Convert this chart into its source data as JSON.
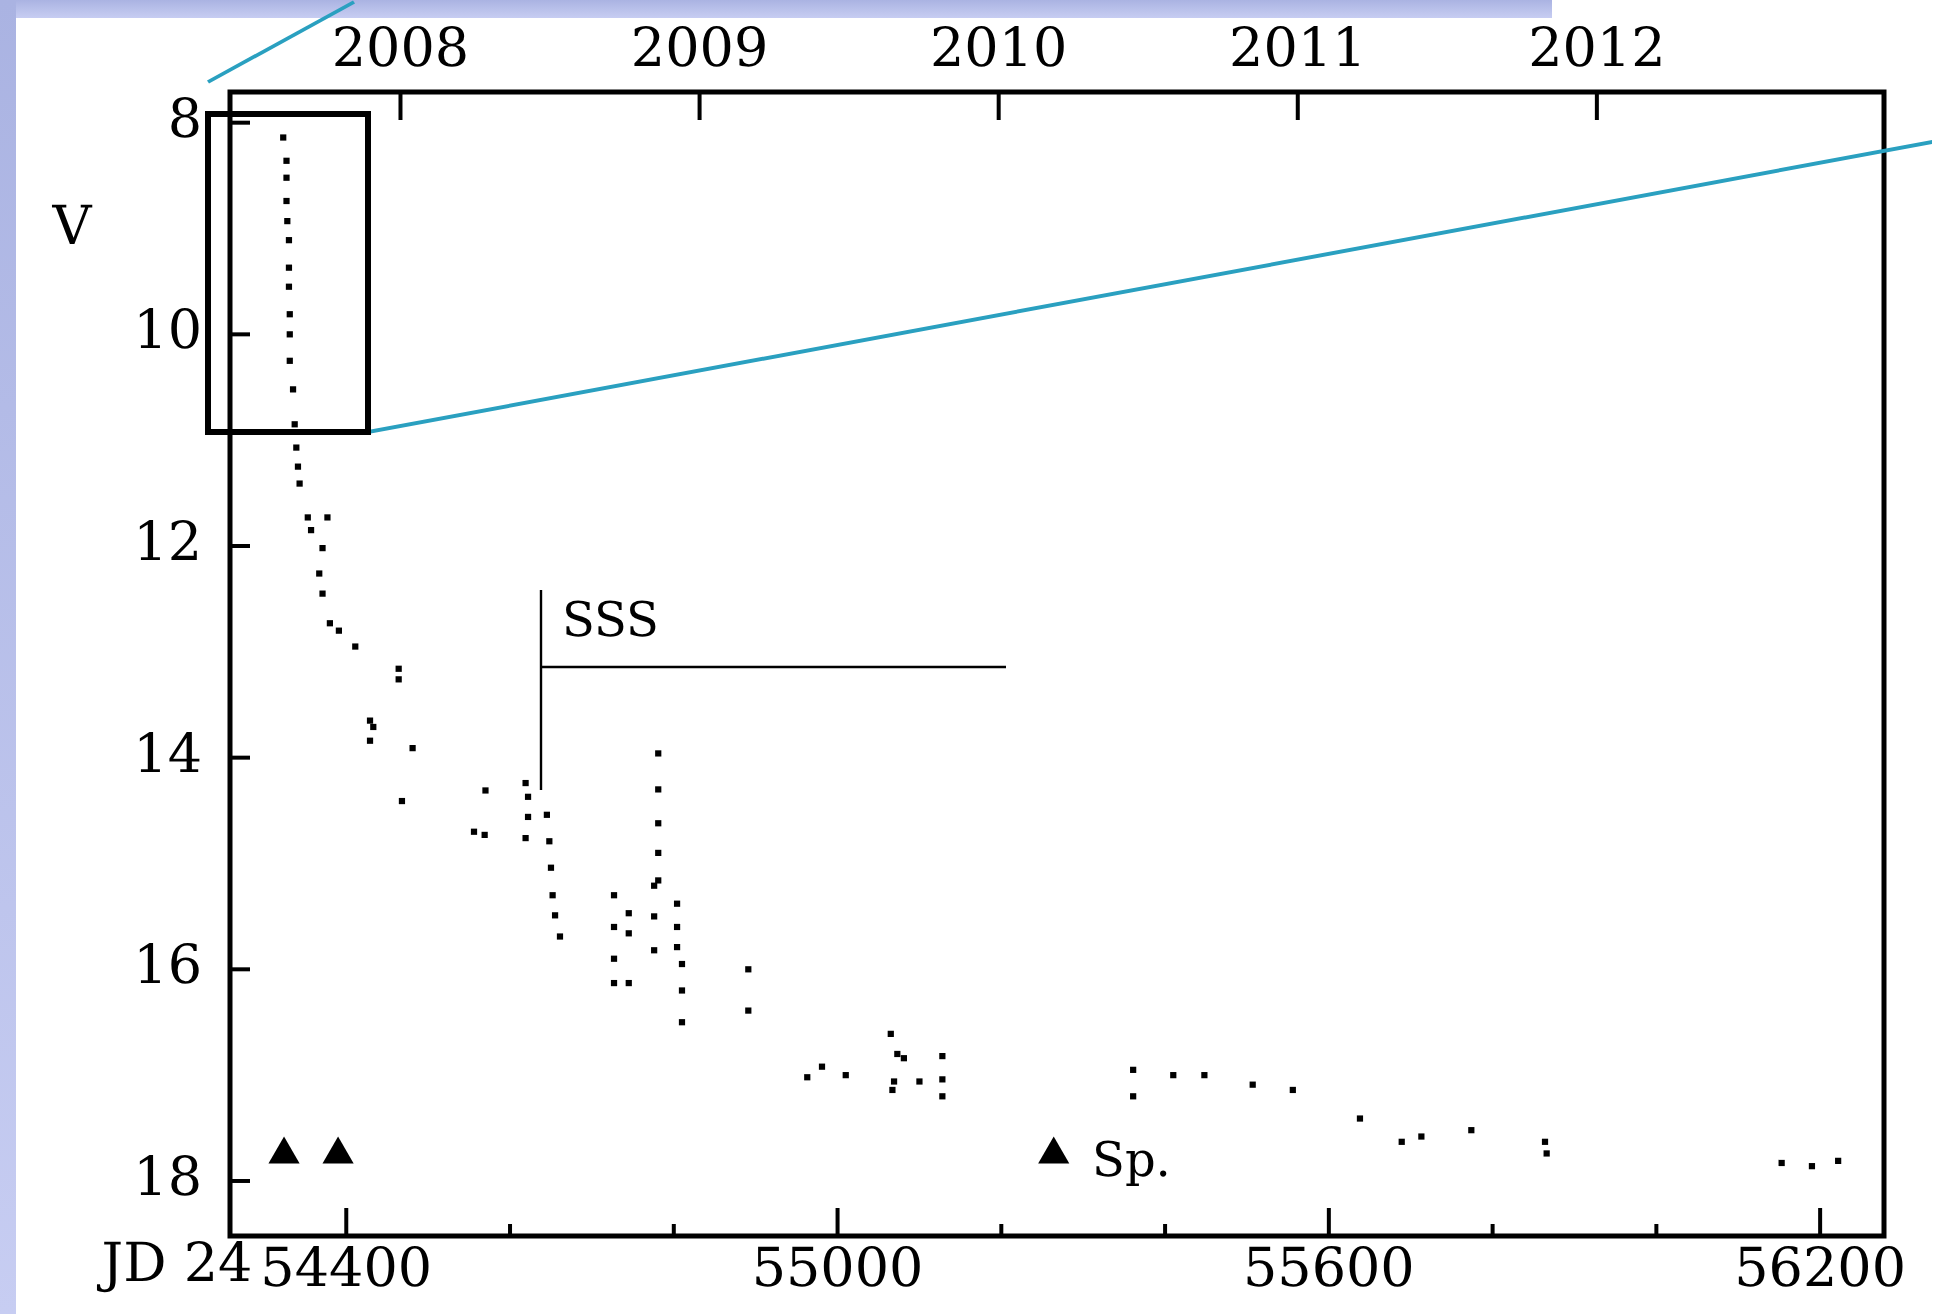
{
  "chart_data": {
    "type": "scatter",
    "xlabel": "JD 24",
    "ylabel": "V",
    "xlim": [
      54258,
      56278
    ],
    "ylim": [
      18.52,
      7.71
    ],
    "xticks": [
      54400,
      {
        "value": 54600,
        "label": null
      },
      {
        "value": 54800,
        "label": null
      },
      {
        "value": 55000,
        "label": "55000"
      },
      {
        "value": 55200,
        "label": null
      },
      {
        "value": 55400,
        "label": null
      },
      {
        "value": 55600,
        "label": "55600"
      },
      {
        "value": 55800,
        "label": null
      },
      {
        "value": 56000,
        "label": null
      },
      {
        "value": 56200,
        "label": "56200"
      }
    ],
    "yticks": [
      8,
      10,
      12,
      14,
      16,
      18
    ],
    "x2lim": [
      2007.43,
      2012.96
    ],
    "x2ticks": [
      2008,
      2009,
      2010,
      2011,
      2012
    ],
    "grid": false,
    "legend": false,
    "annotations": [
      "SSS",
      "Sp."
    ],
    "series": [
      {
        "type": "scatter",
        "marker": "square",
        "color": "#000000",
        "x": [
          54323,
          54327,
          54327,
          54327,
          54328,
          54330,
          54330,
          54330,
          54331,
          54331,
          54331,
          54335,
          54337,
          54339,
          54341,
          54343,
          54353,
          54377,
          54357,
          54371,
          54367,
          54371,
          54380,
          54391,
          54411,
          54464,
          54464,
          54429,
          54433,
          54429,
          54481,
          54468,
          54570,
          54556,
          54569,
          54619,
          54622,
          54622,
          54619,
          54645,
          54648,
          54650,
          54652,
          54655,
          54661,
          54727,
          54727,
          54727,
          54727,
          54745,
          54745,
          54745,
          54781,
          54781,
          54781,
          54781,
          54781,
          54776,
          54776,
          54776,
          54804,
          54804,
          54804,
          54810,
          54810,
          54810,
          54891,
          54891,
          54963,
          54981,
          55010,
          55065,
          55073,
          55081,
          55069,
          55067,
          55100,
          55128,
          55128,
          55128,
          55361,
          55361,
          55410,
          55448,
          55507,
          55556,
          55638,
          55689,
          55713,
          55774,
          55864,
          55866,
          56153,
          56190,
          56222
        ],
        "values": [
          8.14,
          8.36,
          8.52,
          8.74,
          8.93,
          9.11,
          9.37,
          9.55,
          9.81,
          10.0,
          10.25,
          10.52,
          10.85,
          11.07,
          11.25,
          11.41,
          11.73,
          11.73,
          11.85,
          12.02,
          12.26,
          12.45,
          12.73,
          12.8,
          12.95,
          13.16,
          13.26,
          13.65,
          13.71,
          13.84,
          13.91,
          14.41,
          14.31,
          14.7,
          14.73,
          14.24,
          14.37,
          14.56,
          14.76,
          14.54,
          14.79,
          15.04,
          15.3,
          15.49,
          15.69,
          15.3,
          15.6,
          15.9,
          16.13,
          15.47,
          15.66,
          16.13,
          13.96,
          14.3,
          14.62,
          14.9,
          15.16,
          15.21,
          15.5,
          15.82,
          15.38,
          15.6,
          15.79,
          15.95,
          16.2,
          16.5,
          16.0,
          16.39,
          17.02,
          16.92,
          17.0,
          16.61,
          16.8,
          16.84,
          17.06,
          17.14,
          17.06,
          16.82,
          17.04,
          17.2,
          16.95,
          17.2,
          17.0,
          17.0,
          17.09,
          17.14,
          17.41,
          17.63,
          17.58,
          17.52,
          17.63,
          17.74,
          17.83,
          17.86,
          17.81
        ]
      },
      {
        "type": "scatter",
        "marker": "triangle",
        "color": "#000000",
        "x": [
          54324,
          54390,
          55264
        ],
        "values": [
          17.75,
          17.75,
          17.75
        ]
      }
    ]
  }
}
